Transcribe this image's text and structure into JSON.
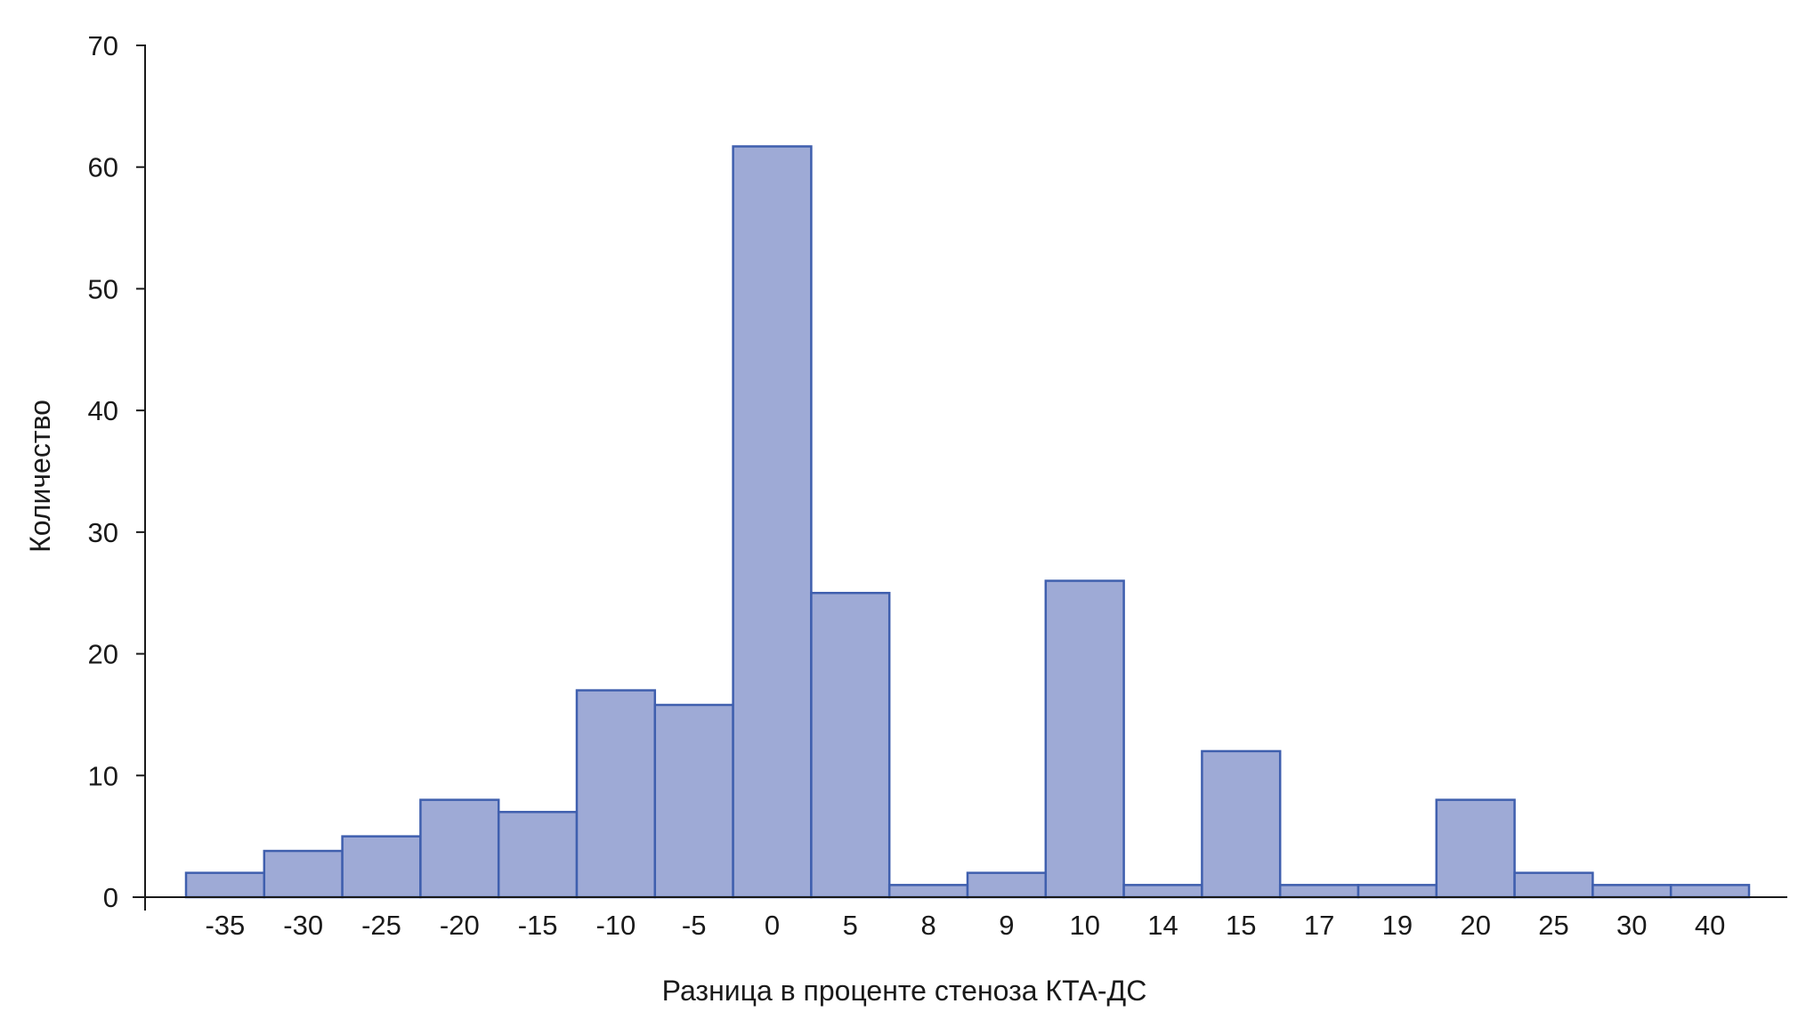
{
  "chart_data": {
    "type": "bar",
    "title": "",
    "xlabel": "Разница в проценте стеноза КТА-ДС",
    "ylabel": "Количество",
    "categories": [
      "-35",
      "-30",
      "-25",
      "-20",
      "-15",
      "-10",
      "-5",
      "0",
      "5",
      "8",
      "9",
      "10",
      "14",
      "15",
      "17",
      "19",
      "20",
      "25",
      "30",
      "40"
    ],
    "values": [
      2,
      3.8,
      5,
      8,
      7,
      17,
      15.8,
      61.7,
      25,
      1,
      2,
      26,
      1,
      12,
      1,
      1,
      8,
      2,
      1,
      1
    ],
    "ylim": [
      0,
      70
    ],
    "yticks": [
      "0",
      "10",
      "20",
      "30",
      "40",
      "50",
      "60",
      "70"
    ],
    "grid": false,
    "legend": "none",
    "colors": {
      "bar_fill": "#9eaad6",
      "bar_stroke": "#3f5fae",
      "axis": "#1a1a1a"
    }
  }
}
